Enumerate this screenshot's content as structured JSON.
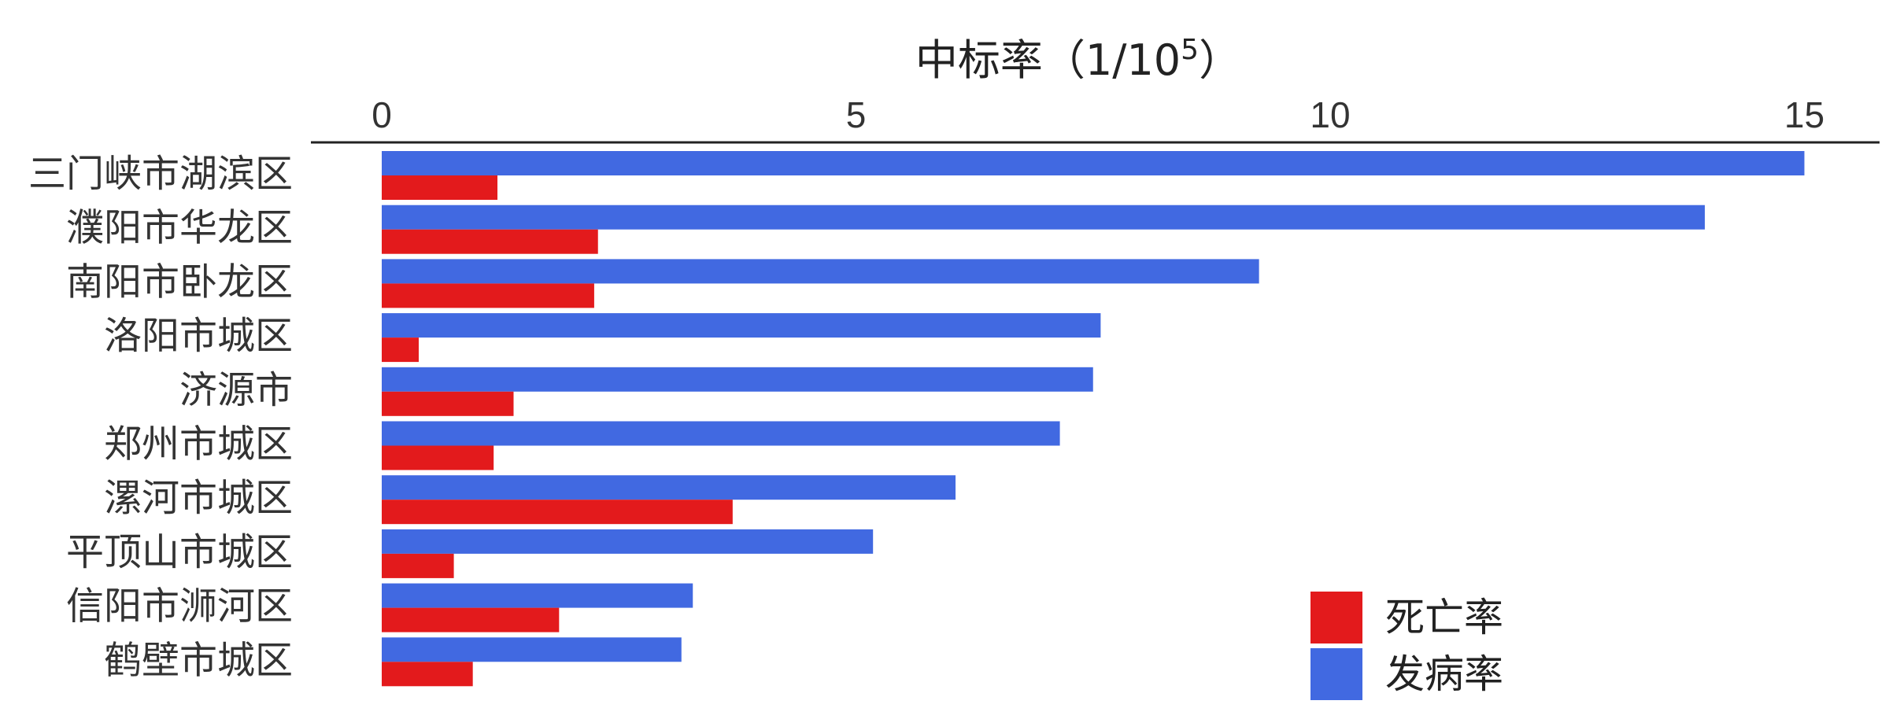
{
  "chart_data": {
    "type": "bar",
    "orientation": "horizontal",
    "title": "",
    "xlabel": "中标率（1/10",
    "xlabel_superscript": "5",
    "xlabel_close": "）",
    "ylabel": "",
    "xaxis_position": "top",
    "xlim": [
      0,
      15.5
    ],
    "xticks": [
      0,
      5,
      10,
      15
    ],
    "xtick_labels": [
      "0",
      "5",
      "10",
      "15"
    ],
    "grid": false,
    "categories": [
      "三门峡市湖滨区",
      "濮阳市华龙区",
      "南阳市卧龙区",
      "洛阳市城区",
      "济源市",
      "郑州市城区",
      "漯河市城区",
      "平顶山市城区",
      "信阳市浉河区",
      "鹤壁市城区"
    ],
    "series": [
      {
        "name": "发病率",
        "color": "#4169E1",
        "values": [
          15.0,
          13.95,
          9.25,
          7.58,
          7.5,
          7.15,
          6.05,
          5.18,
          3.28,
          3.16
        ]
      },
      {
        "name": "死亡率",
        "color": "#E31A1C",
        "values": [
          1.22,
          2.28,
          2.24,
          0.39,
          1.39,
          1.18,
          3.7,
          0.76,
          1.87,
          0.96
        ]
      }
    ],
    "legend": {
      "placement": "bottom-right",
      "entries": [
        {
          "label": "死亡率",
          "color": "#E31A1C"
        },
        {
          "label": "发病率",
          "color": "#4169E1"
        }
      ]
    }
  }
}
